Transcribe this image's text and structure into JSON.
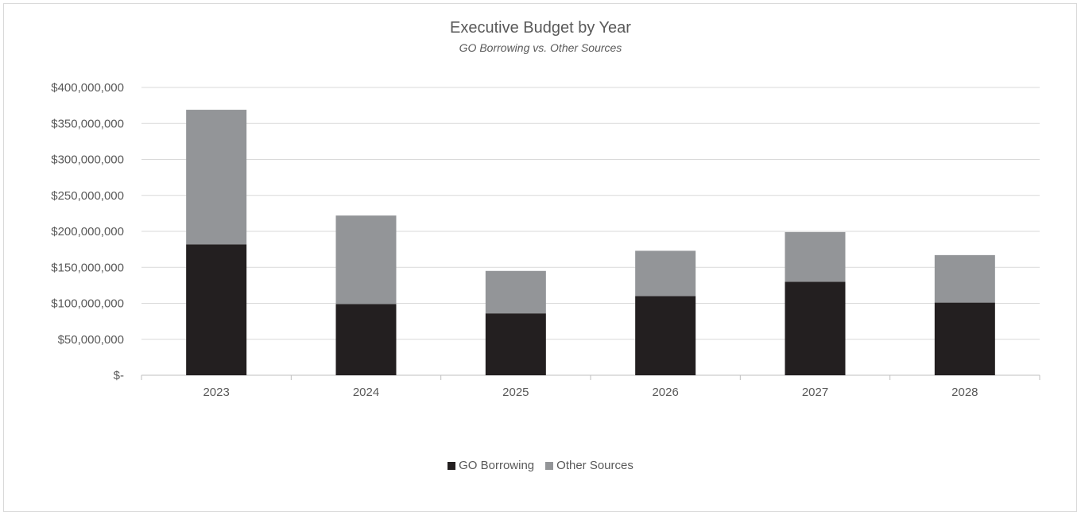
{
  "chart_data": {
    "type": "bar",
    "stacked": true,
    "title": "Executive Budget by Year",
    "subtitle": "GO Borrowing vs. Other Sources",
    "categories": [
      "2023",
      "2024",
      "2025",
      "2026",
      "2027",
      "2028"
    ],
    "series": [
      {
        "name": "GO Borrowing",
        "color": "#231f20",
        "values": [
          182000000,
          99000000,
          86000000,
          110000000,
          130000000,
          101000000
        ]
      },
      {
        "name": "Other Sources",
        "color": "#939598",
        "values": [
          187000000,
          123000000,
          59000000,
          63000000,
          69000000,
          66000000
        ]
      }
    ],
    "ylim": [
      0,
      400000000
    ],
    "yticks": [
      0,
      50000000,
      100000000,
      150000000,
      200000000,
      250000000,
      300000000,
      350000000,
      400000000
    ],
    "ytick_labels": [
      "$-",
      "$50,000,000",
      "$100,000,000",
      "$150,000,000",
      "$200,000,000",
      "$250,000,000",
      "$300,000,000",
      "$350,000,000",
      "$400,000,000"
    ],
    "grid": true,
    "legend_position": "bottom"
  }
}
